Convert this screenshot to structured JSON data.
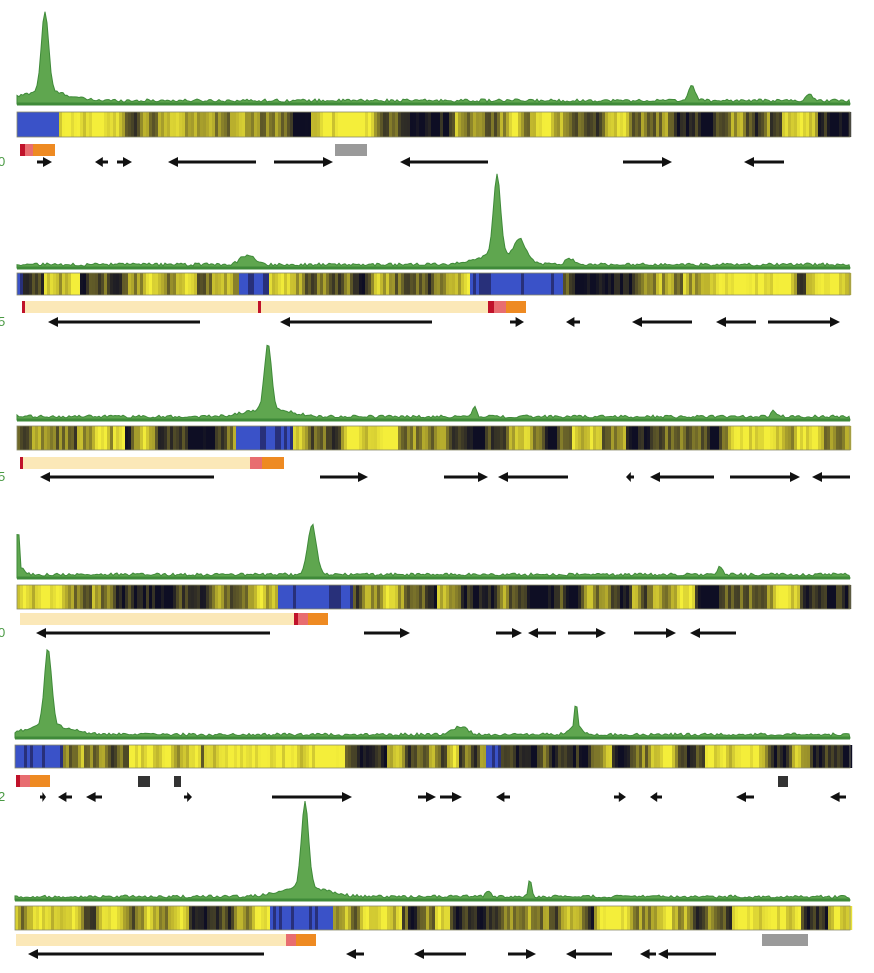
{
  "figure": {
    "background": "#ffffff",
    "colors": {
      "signal_fill": "#5fa64f",
      "signal_stroke": "#3f8a39",
      "heat_low": "#3a52c8",
      "heat_dark": "#0e0e24",
      "heat_mid": "#6d6a2a",
      "heat_high": "#f4ee3a",
      "arrow": "#111111",
      "block_red": "#c0122a",
      "block_pink": "#e86d70",
      "block_orange": "#ee8a22",
      "block_light": "#fbe8b8",
      "block_gray": "#9a9a9a",
      "block_dark": "#333333"
    },
    "track_labels": [
      "0",
      "5",
      "5",
      "0",
      "2",
      ""
    ],
    "tracks_count": 6
  }
}
